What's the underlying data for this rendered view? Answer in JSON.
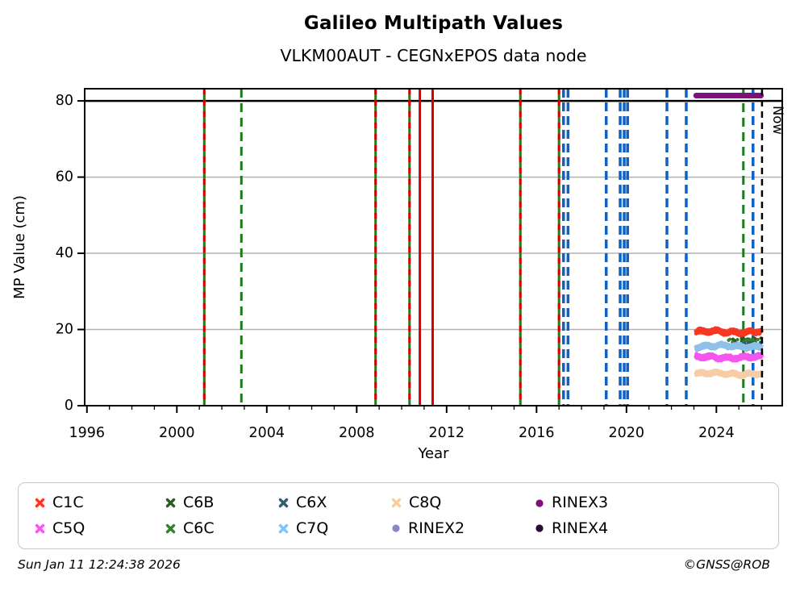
{
  "header": {
    "title": "Galileo Multipath Values",
    "subtitle": "VLKM00AUT - CEGNxEPOS data node"
  },
  "footer": {
    "timestamp": "Sun Jan 11 12:24:38 2026",
    "credit": "©GNSS@ROB"
  },
  "chart_data": {
    "type": "scatter",
    "title": "Galileo Multipath Values",
    "subtitle": "VLKM00AUT - CEGNxEPOS data node",
    "xlabel": "Year",
    "ylabel": "MP Value (cm)",
    "xlim": [
      1995.9,
      2026.93
    ],
    "ylim": [
      0,
      83.2
    ],
    "xticks_major": [
      1996,
      2000,
      2004,
      2008,
      2012,
      2016,
      2020,
      2024
    ],
    "xtick_minor_step": 1,
    "yticks": [
      0,
      20,
      40,
      60,
      80
    ],
    "grid_y": [
      20,
      40,
      60
    ],
    "grid_on": true,
    "hline": {
      "y": 80,
      "color": "#000000"
    },
    "now_marker": {
      "year": 2026.03,
      "label": "Now",
      "style": "dashed",
      "color": "#000000"
    },
    "colors": {
      "event_green": "#1d7a1d",
      "event_red": "#d40000",
      "event_blue": "#0f62c4",
      "event_black": "#000000",
      "grid_gray": "#b3b3b3"
    },
    "event_lines": [
      {
        "year": 2001.22,
        "style": "green+red"
      },
      {
        "year": 2002.87,
        "style": "green-dashed"
      },
      {
        "year": 2008.84,
        "style": "green+red"
      },
      {
        "year": 2010.35,
        "style": "green+red"
      },
      {
        "year": 2010.81,
        "style": "red"
      },
      {
        "year": 2011.38,
        "style": "red"
      },
      {
        "year": 2015.28,
        "style": "green+red"
      },
      {
        "year": 2017.0,
        "style": "green+red"
      },
      {
        "year": 2017.2,
        "style": "blue-dashed"
      },
      {
        "year": 2017.4,
        "style": "blue-dashed"
      },
      {
        "year": 2019.1,
        "style": "blue-dashed"
      },
      {
        "year": 2019.72,
        "style": "blue-dashed"
      },
      {
        "year": 2019.9,
        "style": "blue-dashed"
      },
      {
        "year": 2020.05,
        "style": "blue-dashed"
      },
      {
        "year": 2021.8,
        "style": "blue-dashed"
      },
      {
        "year": 2022.66,
        "style": "blue-dashed"
      },
      {
        "year": 2025.2,
        "style": "green-dashed"
      },
      {
        "year": 2025.63,
        "style": "blue-dashed"
      }
    ],
    "series": [
      {
        "id": "C1C",
        "color": "#f93822",
        "marker": "x",
        "x_start": 2023.1,
        "x_end": 2026.0,
        "y_mean": 19.4,
        "y_jitter": 0.55,
        "density": "dense"
      },
      {
        "id": "C5Q",
        "color": "#f556ef",
        "marker": "x",
        "x_start": 2023.1,
        "x_end": 2026.0,
        "y_mean": 12.7,
        "y_jitter": 0.55,
        "density": "dense"
      },
      {
        "id": "C6B",
        "color": "#2d5a27",
        "marker": "x",
        "x_start": 2023.9,
        "x_end": 2026.0,
        "y_mean": 17.3,
        "y_jitter": 0.45,
        "density": "sparse",
        "n": 18
      },
      {
        "id": "C6C",
        "color": "#3a7d32",
        "marker": "x",
        "x_start": 2024.2,
        "x_end": 2026.0,
        "y_mean": 17.0,
        "y_jitter": 0.45,
        "density": "sparse",
        "n": 12
      },
      {
        "id": "C6X",
        "color": "#2d5f66",
        "marker": "x",
        "x_start": 2024.3,
        "x_end": 2026.0,
        "y_mean": 16.2,
        "y_jitter": 0.45,
        "density": "sparse",
        "n": 26
      },
      {
        "id": "C7Q",
        "color": "#8fc0e8",
        "marker": "x",
        "x_start": 2023.1,
        "x_end": 2026.0,
        "y_mean": 15.6,
        "y_jitter": 0.55,
        "density": "dense"
      },
      {
        "id": "C8Q",
        "color": "#f6cda6",
        "marker": "x",
        "x_start": 2023.1,
        "x_end": 2026.0,
        "y_mean": 8.4,
        "y_jitter": 0.5,
        "density": "dense"
      },
      {
        "id": "RINEX3",
        "color": "#7d0f7e",
        "marker": "line",
        "x_start": 2023.1,
        "x_end": 2025.98,
        "y_mean": 81.4,
        "width": 7
      }
    ],
    "legend": {
      "position": "bottom",
      "items": [
        {
          "label": "C1C",
          "color": "#f93822",
          "marker": "x"
        },
        {
          "label": "C5Q",
          "color": "#f556ef",
          "marker": "x"
        },
        {
          "label": "C6B",
          "color": "#2d5a27",
          "marker": "x"
        },
        {
          "label": "C6C",
          "color": "#3a7d32",
          "marker": "x"
        },
        {
          "label": "C6X",
          "color": "#2d5f66",
          "marker": "x"
        },
        {
          "label": "C7Q",
          "color": "#8fc0e8",
          "marker": "x"
        },
        {
          "label": "C8Q",
          "color": "#f6cda6",
          "marker": "x"
        },
        {
          "label": "RINEX2",
          "color": "#8687c7",
          "marker": "circle"
        },
        {
          "label": "RINEX3",
          "color": "#7d0f7e",
          "marker": "circle"
        },
        {
          "label": "RINEX4",
          "color": "#2b0b33",
          "marker": "circle"
        }
      ]
    }
  }
}
